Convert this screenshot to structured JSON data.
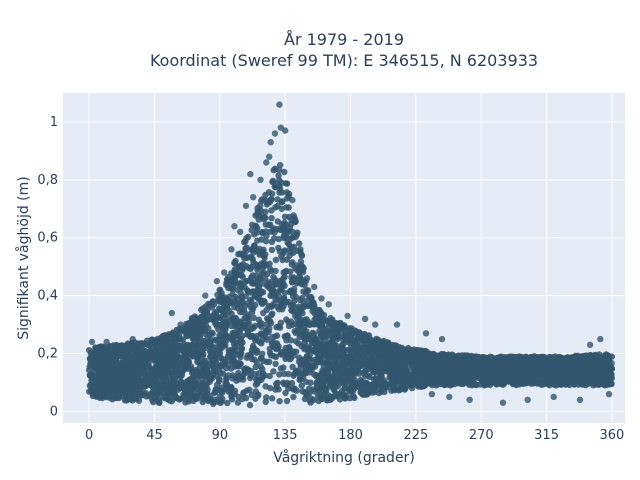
{
  "chart_data": {
    "type": "scatter",
    "title": "År 1979 - 2019",
    "subtitle": "Koordinat (Sweref 99 TM): E 346515, N 6203933",
    "xlabel": "Vågriktning (grader)",
    "ylabel": "Signifikant våghöjd (m)",
    "xlim": [
      -18,
      369
    ],
    "ylim": [
      -0.04,
      1.1
    ],
    "grid": true,
    "colors": {
      "background": "#e5ecf6",
      "grid": "#ffffff",
      "marker": "#32566e",
      "text": "#2a3f5f"
    },
    "x_ticks": [
      {
        "value": 0,
        "label": "0"
      },
      {
        "value": 45,
        "label": "45"
      },
      {
        "value": 90,
        "label": "90"
      },
      {
        "value": 135,
        "label": "135"
      },
      {
        "value": 180,
        "label": "180"
      },
      {
        "value": 225,
        "label": "225"
      },
      {
        "value": 270,
        "label": "270"
      },
      {
        "value": 315,
        "label": "315"
      },
      {
        "value": 360,
        "label": "360"
      }
    ],
    "y_ticks": [
      {
        "value": 0,
        "label": "0"
      },
      {
        "value": 0.2,
        "label": "0,2"
      },
      {
        "value": 0.4,
        "label": "0,4"
      },
      {
        "value": 0.6,
        "label": "0,6"
      },
      {
        "value": 0.8,
        "label": "0,8"
      },
      {
        "value": 1,
        "label": "1"
      }
    ],
    "envelope": {
      "x": [
        0,
        20,
        45,
        60,
        75,
        90,
        100,
        110,
        120,
        128,
        133,
        138,
        145,
        150,
        160,
        175,
        190,
        210,
        240,
        270,
        300,
        330,
        360
      ],
      "upper": [
        0.22,
        0.23,
        0.25,
        0.28,
        0.34,
        0.42,
        0.52,
        0.63,
        0.76,
        0.85,
        0.86,
        0.78,
        0.58,
        0.45,
        0.34,
        0.3,
        0.27,
        0.23,
        0.2,
        0.19,
        0.19,
        0.19,
        0.2
      ],
      "lower": [
        0.05,
        0.04,
        0.03,
        0.03,
        0.03,
        0.02,
        0.02,
        0.02,
        0.02,
        0.02,
        0.02,
        0.02,
        0.02,
        0.02,
        0.03,
        0.04,
        0.05,
        0.07,
        0.09,
        0.09,
        0.09,
        0.09,
        0.09
      ]
    },
    "outliers": [
      {
        "x": 131,
        "y": 1.06
      },
      {
        "x": 132,
        "y": 0.98
      },
      {
        "x": 128,
        "y": 0.96
      },
      {
        "x": 125,
        "y": 0.93
      },
      {
        "x": 124,
        "y": 0.88
      },
      {
        "x": 122,
        "y": 0.86
      },
      {
        "x": 135,
        "y": 0.97
      },
      {
        "x": 118,
        "y": 0.8
      },
      {
        "x": 111,
        "y": 0.82
      },
      {
        "x": 113,
        "y": 0.74
      },
      {
        "x": 108,
        "y": 0.71
      },
      {
        "x": 100,
        "y": 0.64
      },
      {
        "x": 98,
        "y": 0.56
      },
      {
        "x": 104,
        "y": 0.62
      },
      {
        "x": 140,
        "y": 0.73
      },
      {
        "x": 142,
        "y": 0.66
      },
      {
        "x": 143,
        "y": 0.61
      },
      {
        "x": 147,
        "y": 0.5
      },
      {
        "x": 150,
        "y": 0.46
      },
      {
        "x": 155,
        "y": 0.43
      },
      {
        "x": 160,
        "y": 0.39
      },
      {
        "x": 165,
        "y": 0.37
      },
      {
        "x": 178,
        "y": 0.33
      },
      {
        "x": 190,
        "y": 0.32
      },
      {
        "x": 197,
        "y": 0.3
      },
      {
        "x": 212,
        "y": 0.3
      },
      {
        "x": 232,
        "y": 0.27
      },
      {
        "x": 243,
        "y": 0.25
      },
      {
        "x": 57,
        "y": 0.34
      },
      {
        "x": 63,
        "y": 0.3
      },
      {
        "x": 71,
        "y": 0.31
      },
      {
        "x": 80,
        "y": 0.4
      },
      {
        "x": 93,
        "y": 0.48
      },
      {
        "x": 88,
        "y": 0.45
      },
      {
        "x": 352,
        "y": 0.25
      },
      {
        "x": 345,
        "y": 0.23
      },
      {
        "x": 262,
        "y": 0.04
      },
      {
        "x": 285,
        "y": 0.03
      },
      {
        "x": 302,
        "y": 0.04
      },
      {
        "x": 320,
        "y": 0.05
      },
      {
        "x": 338,
        "y": 0.04
      },
      {
        "x": 248,
        "y": 0.05
      },
      {
        "x": 236,
        "y": 0.06
      },
      {
        "x": 358,
        "y": 0.06
      },
      {
        "x": 2,
        "y": 0.24
      },
      {
        "x": 12,
        "y": 0.24
      },
      {
        "x": 30,
        "y": 0.25
      }
    ]
  }
}
